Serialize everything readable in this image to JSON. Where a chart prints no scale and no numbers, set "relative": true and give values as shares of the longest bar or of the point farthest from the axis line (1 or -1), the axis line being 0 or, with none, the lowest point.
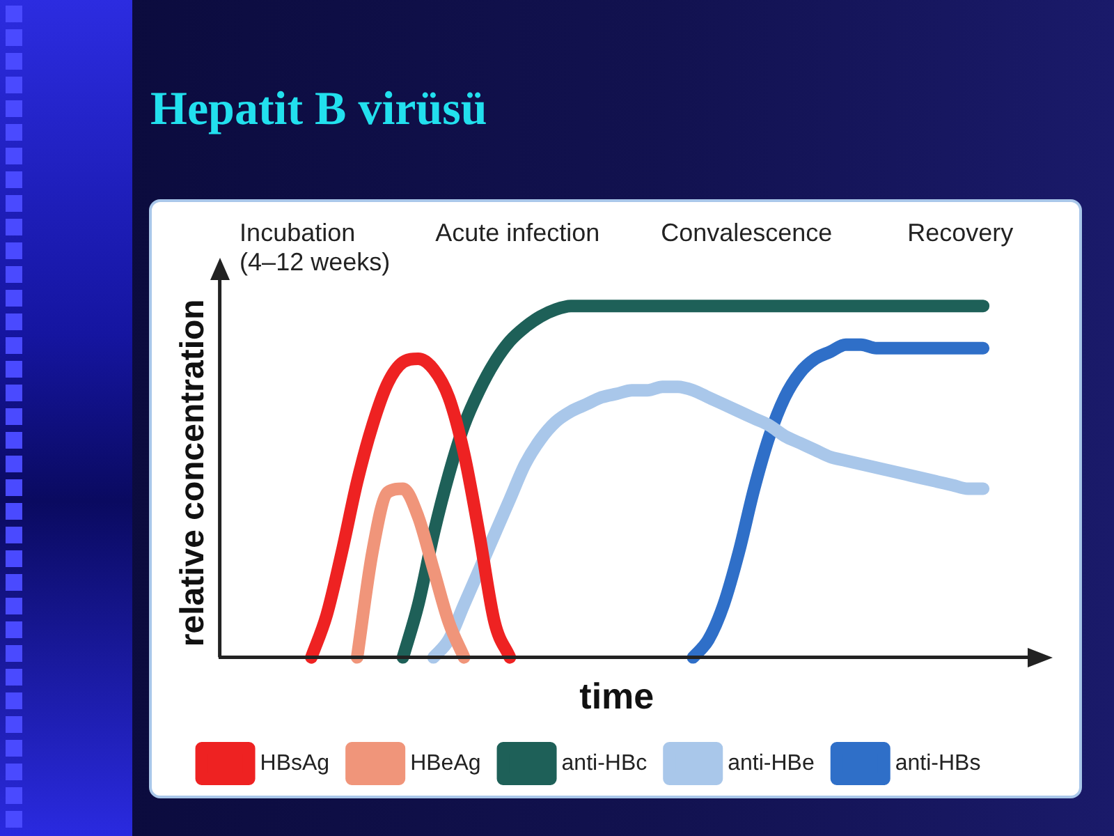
{
  "chart_data": {
    "type": "line",
    "title": "Hepatit B virüsü",
    "xlabel": "time",
    "ylabel": "relative concentration",
    "relative": true,
    "legend": "bottom",
    "annotations": [
      "Incubation\n(4–12 weeks)",
      "Acute infection",
      "Convalescence",
      "Recovery"
    ],
    "categories": [
      null,
      null,
      null,
      null,
      null,
      null,
      null,
      null,
      null,
      null,
      null,
      null,
      null,
      null,
      null,
      null,
      null,
      null,
      null,
      null,
      null,
      null,
      null,
      null,
      null,
      null,
      null,
      null,
      null,
      null,
      null,
      null,
      null,
      null,
      null,
      null,
      null,
      null,
      null,
      null,
      null,
      null,
      null,
      null,
      null,
      null,
      null,
      null,
      null,
      null,
      null,
      null,
      null
    ],
    "series": [
      {
        "name": "HBsAg",
        "color": "#ee2222",
        "values": [
          null,
          null,
          null,
          null,
          null,
          null,
          0,
          0.12,
          0.3,
          0.5,
          0.66,
          0.78,
          0.84,
          0.85,
          0.82,
          0.74,
          0.58,
          0.35,
          0.1,
          0,
          null,
          null,
          null,
          null,
          null,
          null,
          null,
          null,
          null,
          null,
          null,
          null,
          null,
          null,
          null,
          null,
          null,
          null,
          null,
          null,
          null,
          null,
          null,
          null,
          null,
          null,
          null,
          null,
          null,
          null,
          null,
          null,
          null
        ]
      },
      {
        "name": "HBeAg",
        "color": "#f0957a",
        "values": [
          null,
          null,
          null,
          null,
          null,
          null,
          null,
          null,
          null,
          0,
          0.3,
          0.47,
          0.48,
          0.4,
          0.25,
          0.1,
          0,
          null,
          null,
          null,
          null,
          null,
          null,
          null,
          null,
          null,
          null,
          null,
          null,
          null,
          null,
          null,
          null,
          null,
          null,
          null,
          null,
          null,
          null,
          null,
          null,
          null,
          null,
          null,
          null,
          null,
          null,
          null,
          null,
          null,
          null,
          null,
          null
        ]
      },
      {
        "name": "anti-HBc",
        "color": "#1e6058",
        "values": [
          null,
          null,
          null,
          null,
          null,
          null,
          null,
          null,
          null,
          null,
          null,
          null,
          0,
          0.15,
          0.35,
          0.52,
          0.66,
          0.76,
          0.84,
          0.9,
          0.94,
          0.97,
          0.99,
          1,
          1,
          1,
          1,
          1,
          1,
          1,
          1,
          1,
          1,
          1,
          1,
          1,
          1,
          1,
          1,
          1,
          1,
          1,
          1,
          1,
          1,
          1,
          1,
          1,
          1,
          1,
          1,
          null,
          null
        ]
      },
      {
        "name": "anti-HBe",
        "color": "#a9c7ea",
        "values": [
          null,
          null,
          null,
          null,
          null,
          null,
          null,
          null,
          null,
          null,
          null,
          null,
          null,
          null,
          0,
          0.05,
          0.15,
          0.25,
          0.35,
          0.45,
          0.55,
          0.62,
          0.67,
          0.7,
          0.72,
          0.74,
          0.75,
          0.76,
          0.76,
          0.77,
          0.77,
          0.76,
          0.74,
          0.72,
          0.7,
          0.68,
          0.66,
          0.63,
          0.61,
          0.59,
          0.57,
          0.56,
          0.55,
          0.54,
          0.53,
          0.52,
          0.51,
          0.5,
          0.49,
          0.48,
          0.48,
          null,
          null
        ]
      },
      {
        "name": "anti-HBs",
        "color": "#2f6fc8",
        "values": [
          null,
          null,
          null,
          null,
          null,
          null,
          null,
          null,
          null,
          null,
          null,
          null,
          null,
          null,
          null,
          null,
          null,
          null,
          null,
          null,
          null,
          null,
          null,
          null,
          null,
          null,
          null,
          null,
          null,
          null,
          null,
          0,
          0.05,
          0.15,
          0.3,
          0.48,
          0.63,
          0.74,
          0.81,
          0.85,
          0.87,
          0.89,
          0.89,
          0.88,
          0.88,
          0.88,
          0.88,
          0.88,
          0.88,
          0.88,
          0.88,
          null,
          null
        ]
      }
    ]
  }
}
